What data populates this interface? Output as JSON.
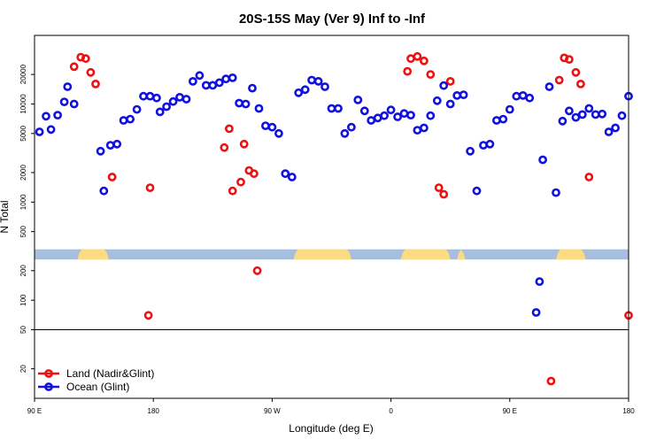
{
  "chart_data": {
    "type": "scatter",
    "title": "20S-15S May (Ver 9)   Inf to -Inf",
    "xlabel": "Longitude (deg E)",
    "ylabel": "N Total",
    "xlim": [
      90,
      450
    ],
    "ylim": [
      10,
      50000
    ],
    "y_scale": "log",
    "x_ticks": [
      {
        "value": 90,
        "label": "90 E"
      },
      {
        "value": 162,
        "label": "180"
      },
      {
        "value": 234,
        "label": "90 W"
      },
      {
        "value": 306,
        "label": "0"
      },
      {
        "value": 378,
        "label": "90 E"
      },
      {
        "value": 450,
        "label": "180"
      }
    ],
    "y_ticks": [
      {
        "value": 20,
        "label": "20"
      },
      {
        "value": 50,
        "label": "50"
      },
      {
        "value": 100,
        "label": "100"
      },
      {
        "value": 200,
        "label": "200"
      },
      {
        "value": 500,
        "label": "500"
      },
      {
        "value": 1000,
        "label": "1000"
      },
      {
        "value": 2000,
        "label": "2000"
      },
      {
        "value": 5000,
        "label": "5000"
      },
      {
        "value": 10000,
        "label": "10000"
      },
      {
        "value": 20000,
        "label": "20000"
      }
    ],
    "reference_line": {
      "y": 50
    },
    "land_ocean_strip": {
      "y_range": [
        260,
        330
      ],
      "ocean_color": "#a7bedc",
      "land_color": "#fbdc85",
      "land_segments": [
        [
          116,
          135
        ],
        [
          247,
          282
        ],
        [
          312,
          342
        ],
        [
          346,
          351
        ],
        [
          406,
          424
        ]
      ]
    },
    "legend": {
      "position": "bottom-left",
      "entries": [
        {
          "name": "Land (Nadir&Glint)",
          "color": "#ee1111"
        },
        {
          "name": "Ocean (Glint)",
          "color": "#1111dd"
        }
      ]
    },
    "series": [
      {
        "name": "Land (Nadir&Glint)",
        "color": "#ee1111",
        "points": [
          [
            114,
            24000
          ],
          [
            118,
            30000
          ],
          [
            121,
            29000
          ],
          [
            124,
            21000
          ],
          [
            127,
            16000
          ],
          [
            137,
            1800
          ],
          [
            159,
            70
          ],
          [
            160,
            1400
          ],
          [
            205,
            3600
          ],
          [
            208,
            5600
          ],
          [
            210,
            1300
          ],
          [
            215,
            1600
          ],
          [
            217,
            3900
          ],
          [
            220,
            2100
          ],
          [
            223,
            1950
          ],
          [
            225,
            200
          ],
          [
            316,
            21500
          ],
          [
            318,
            29000
          ],
          [
            322,
            30500
          ],
          [
            326,
            27500
          ],
          [
            330,
            20000
          ],
          [
            335,
            1400
          ],
          [
            338,
            1200
          ],
          [
            342,
            17000
          ],
          [
            403,
            15
          ],
          [
            408,
            17500
          ],
          [
            411,
            29500
          ],
          [
            414,
            28500
          ],
          [
            418,
            21000
          ],
          [
            421,
            16000
          ],
          [
            426,
            1800
          ],
          [
            450,
            70
          ]
        ]
      },
      {
        "name": "Ocean (Glint)",
        "color": "#1111dd",
        "points": [
          [
            93,
            5200
          ],
          [
            97,
            7500
          ],
          [
            100,
            5500
          ],
          [
            104,
            7700
          ],
          [
            108,
            10500
          ],
          [
            110,
            15000
          ],
          [
            114,
            10000
          ],
          [
            130,
            3300
          ],
          [
            132,
            1300
          ],
          [
            136,
            3800
          ],
          [
            140,
            3900
          ],
          [
            144,
            6800
          ],
          [
            148,
            7000
          ],
          [
            152,
            8800
          ],
          [
            156,
            12000
          ],
          [
            160,
            12000
          ],
          [
            164,
            11500
          ],
          [
            166,
            8300
          ],
          [
            170,
            9400
          ],
          [
            174,
            10600
          ],
          [
            178,
            11700
          ],
          [
            182,
            11200
          ],
          [
            186,
            17000
          ],
          [
            190,
            19500
          ],
          [
            194,
            15500
          ],
          [
            198,
            15500
          ],
          [
            202,
            16500
          ],
          [
            206,
            18000
          ],
          [
            210,
            18500
          ],
          [
            214,
            10200
          ],
          [
            218,
            10000
          ],
          [
            222,
            14500
          ],
          [
            226,
            9000
          ],
          [
            230,
            6000
          ],
          [
            234,
            5800
          ],
          [
            238,
            5000
          ],
          [
            242,
            1950
          ],
          [
            246,
            1800
          ],
          [
            250,
            13000
          ],
          [
            254,
            14000
          ],
          [
            258,
            17500
          ],
          [
            262,
            17000
          ],
          [
            266,
            15000
          ],
          [
            270,
            9000
          ],
          [
            274,
            9000
          ],
          [
            278,
            5000
          ],
          [
            282,
            5800
          ],
          [
            286,
            11000
          ],
          [
            290,
            8500
          ],
          [
            294,
            6800
          ],
          [
            298,
            7200
          ],
          [
            302,
            7600
          ],
          [
            306,
            8700
          ],
          [
            310,
            7400
          ],
          [
            314,
            8000
          ],
          [
            318,
            7700
          ],
          [
            322,
            5400
          ],
          [
            326,
            5700
          ],
          [
            330,
            7600
          ],
          [
            334,
            10800
          ],
          [
            338,
            15400
          ],
          [
            342,
            10000
          ],
          [
            346,
            12200
          ],
          [
            350,
            12400
          ],
          [
            354,
            3300
          ],
          [
            358,
            1300
          ],
          [
            362,
            3800
          ],
          [
            366,
            3900
          ],
          [
            370,
            6800
          ],
          [
            374,
            7000
          ],
          [
            378,
            8800
          ],
          [
            382,
            12000
          ],
          [
            386,
            12200
          ],
          [
            390,
            11500
          ],
          [
            394,
            75
          ],
          [
            396,
            155
          ],
          [
            398,
            2700
          ],
          [
            402,
            15000
          ],
          [
            406,
            1250
          ],
          [
            410,
            6700
          ],
          [
            414,
            8500
          ],
          [
            418,
            7300
          ],
          [
            422,
            7800
          ],
          [
            426,
            9000
          ],
          [
            430,
            7800
          ],
          [
            434,
            7900
          ],
          [
            438,
            5200
          ],
          [
            442,
            5700
          ],
          [
            446,
            7600
          ],
          [
            450,
            12000
          ]
        ]
      }
    ]
  }
}
